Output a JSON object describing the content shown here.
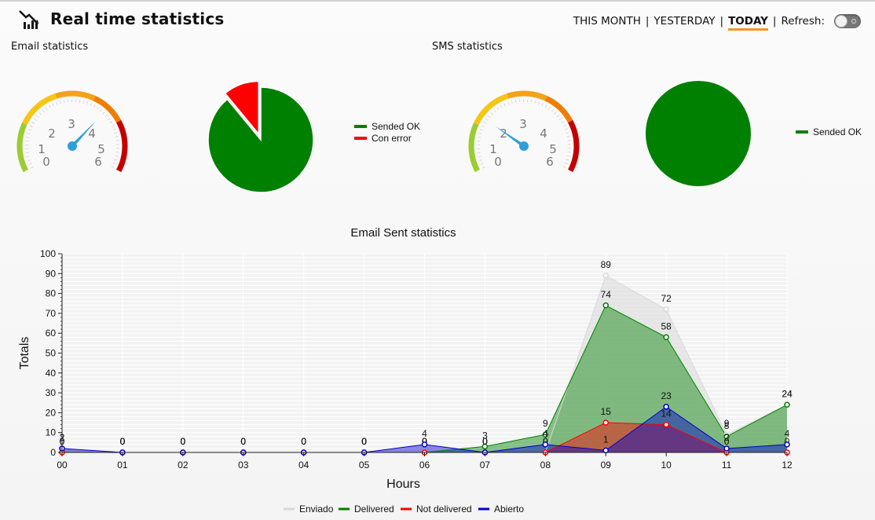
{
  "header": {
    "title": "Real time statistics",
    "range_options": [
      {
        "label": "THIS MONTH",
        "active": false
      },
      {
        "label": "YESTERDAY",
        "active": false
      },
      {
        "label": "TODAY",
        "active": true
      }
    ],
    "refresh_label": "Refresh:",
    "refresh_enabled": false,
    "logo_icon": "bar-chart-trend-icon"
  },
  "email_section": {
    "label": "Email statistics",
    "gauge": {
      "min": 0,
      "max": 6,
      "value": 4.1,
      "ticks": [
        "0",
        "1",
        "2",
        "3",
        "4",
        "5",
        "6"
      ]
    },
    "pie": {
      "slices": [
        {
          "name": "Sended OK",
          "value": 89,
          "color": "#008000"
        },
        {
          "name": "Con error",
          "value": 11,
          "color": "#ff0000"
        }
      ]
    }
  },
  "sms_section": {
    "label": "SMS statistics",
    "gauge": {
      "min": 0,
      "max": 6,
      "value": 1.6,
      "ticks": [
        "0",
        "1",
        "2",
        "3",
        "4",
        "5",
        "6"
      ]
    },
    "pie": {
      "slices": [
        {
          "name": "Sended OK",
          "value": 100,
          "color": "#008000"
        }
      ]
    }
  },
  "chart_data": {
    "type": "area",
    "title": "Email Sent statistics",
    "xlabel": "Hours",
    "ylabel": "Totals",
    "ylim": [
      0,
      100
    ],
    "yticks": [
      0,
      10,
      20,
      30,
      40,
      50,
      60,
      70,
      80,
      90,
      100
    ],
    "categories": [
      "00",
      "01",
      "02",
      "03",
      "04",
      "05",
      "06",
      "07",
      "08",
      "09",
      "10",
      "11",
      "12"
    ],
    "grid": true,
    "legend": "bottom",
    "series": [
      {
        "name": "Enviado",
        "color": "#d8d8d8",
        "values": [
          2,
          0,
          0,
          0,
          0,
          0,
          0,
          0,
          0,
          89,
          72,
          9,
          24
        ]
      },
      {
        "name": "Delivered",
        "color": "#008000",
        "values": [
          0,
          0,
          0,
          0,
          0,
          0,
          0,
          3,
          9,
          74,
          58,
          8,
          24
        ]
      },
      {
        "name": "Not delivered",
        "color": "#ff0000",
        "values": [
          0,
          0,
          0,
          0,
          0,
          0,
          0,
          0,
          0,
          15,
          14,
          0,
          0
        ]
      },
      {
        "name": "Abierto",
        "color": "#0000cc",
        "values": [
          2,
          0,
          0,
          0,
          0,
          0,
          4,
          0,
          4,
          1,
          23,
          2,
          4
        ]
      }
    ]
  }
}
